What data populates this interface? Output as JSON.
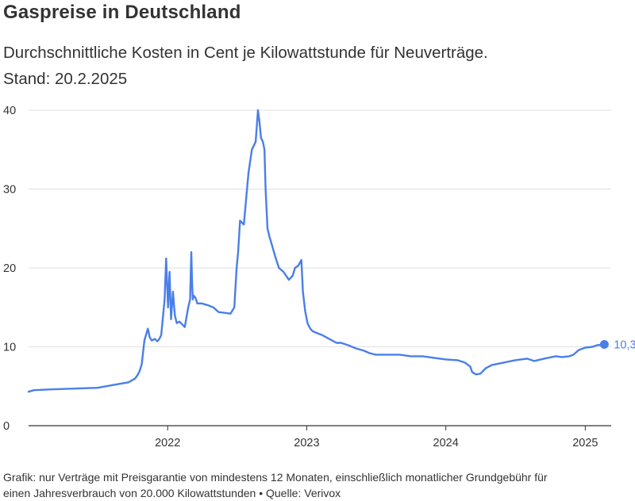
{
  "colors": {
    "line": "#4a7fe8",
    "grid": "#e0e0e0",
    "axis": "#333333",
    "text": "#333333"
  },
  "chart_data": {
    "type": "line",
    "title": "Gaspreise in Deutschland",
    "subtitle_line1": "Durchschnittliche Kosten in Cent je Kilowattstunde für Neuverträge.",
    "subtitle_line2": "Stand: 20.2.2025",
    "footnote_line1": "Grafik: nur Verträge mit Preisgarantie von mindestens 12 Monaten, einschließlich monatlicher Grundgebühr für",
    "footnote_line2": "einen Jahresverbrauch von 20.000 Kilowattstunden • Quelle: Verivox",
    "xlabel": "",
    "ylabel": "",
    "ylim": [
      0,
      40
    ],
    "yticks": [
      "0",
      "10",
      "20",
      "30",
      "40"
    ],
    "xticks": [
      "2022",
      "2023",
      "2024",
      "2025"
    ],
    "xlim": [
      "2021-01-01",
      "2025-03-10"
    ],
    "grid": true,
    "end_label": "10,3",
    "series": [
      {
        "x": [
          "2021-01-01",
          "2021-01-15",
          "2021-03-01",
          "2021-05-01",
          "2021-07-01",
          "2021-08-15",
          "2021-09-20",
          "2021-10-01",
          "2021-10-08",
          "2021-10-15",
          "2021-10-20",
          "2021-10-25",
          "2021-11-01",
          "2021-11-10",
          "2021-11-15",
          "2021-11-20",
          "2021-11-28",
          "2021-12-05",
          "2021-12-10",
          "2021-12-15",
          "2021-12-20",
          "2021-12-24",
          "2021-12-28",
          "2022-01-02",
          "2022-01-06",
          "2022-01-10",
          "2022-01-15",
          "2022-01-20",
          "2022-01-25",
          "2022-02-01",
          "2022-02-15",
          "2022-02-24",
          "2022-03-01",
          "2022-03-04",
          "2022-03-06",
          "2022-03-08",
          "2022-03-10",
          "2022-03-15",
          "2022-03-20",
          "2022-04-01",
          "2022-04-15",
          "2022-05-01",
          "2022-05-15",
          "2022-06-01",
          "2022-06-15",
          "2022-06-25",
          "2022-07-01",
          "2022-07-05",
          "2022-07-10",
          "2022-07-20",
          "2022-08-01",
          "2022-08-10",
          "2022-08-20",
          "2022-08-26",
          "2022-08-30",
          "2022-09-03",
          "2022-09-08",
          "2022-09-12",
          "2022-09-15",
          "2022-09-20",
          "2022-09-25",
          "2022-10-01",
          "2022-10-10",
          "2022-10-20",
          "2022-11-01",
          "2022-11-15",
          "2022-11-25",
          "2022-12-01",
          "2022-12-10",
          "2022-12-18",
          "2022-12-22",
          "2022-12-28",
          "2023-01-03",
          "2023-01-08",
          "2023-01-12",
          "2023-01-16",
          "2023-01-25",
          "2023-02-10",
          "2023-03-01",
          "2023-03-20",
          "2023-04-01",
          "2023-04-20",
          "2023-05-10",
          "2023-06-01",
          "2023-06-15",
          "2023-07-01",
          "2023-08-01",
          "2023-09-01",
          "2023-10-01",
          "2023-11-01",
          "2023-12-01",
          "2024-01-01",
          "2024-02-01",
          "2024-02-20",
          "2024-03-05",
          "2024-03-10",
          "2024-03-20",
          "2024-04-01",
          "2024-04-15",
          "2024-05-01",
          "2024-06-01",
          "2024-07-01",
          "2024-08-01",
          "2024-08-20",
          "2024-09-15",
          "2024-10-15",
          "2024-11-01",
          "2024-11-20",
          "2024-12-01",
          "2024-12-15",
          "2025-01-01",
          "2025-01-20",
          "2025-02-01",
          "2025-02-20"
        ],
        "values": [
          4.3,
          4.5,
          4.6,
          4.7,
          4.8,
          5.2,
          5.5,
          5.8,
          6.0,
          6.5,
          7.0,
          7.8,
          10.8,
          12.3,
          11.2,
          10.8,
          11.0,
          10.7,
          11.0,
          11.5,
          14.0,
          16.0,
          21.2,
          15.0,
          19.5,
          13.5,
          17.0,
          14.0,
          13.0,
          13.2,
          12.5,
          15.0,
          16.0,
          22.0,
          18.5,
          16.0,
          16.5,
          16.2,
          15.5,
          15.5,
          15.3,
          15.0,
          14.4,
          14.3,
          14.2,
          15.0,
          20.0,
          22.0,
          26.0,
          25.5,
          32.0,
          35.0,
          36.0,
          40.0,
          38.5,
          36.5,
          36.0,
          35.0,
          30.0,
          25.0,
          24.0,
          23.0,
          21.5,
          20.0,
          19.5,
          18.5,
          19.0,
          20.0,
          20.3,
          21.0,
          17.0,
          14.5,
          13.0,
          12.5,
          12.2,
          12.0,
          11.8,
          11.5,
          11.0,
          10.5,
          10.5,
          10.2,
          9.8,
          9.5,
          9.2,
          9.0,
          9.0,
          9.0,
          8.8,
          8.8,
          8.6,
          8.4,
          8.3,
          8.0,
          7.5,
          6.8,
          6.5,
          6.6,
          7.3,
          7.7,
          8.0,
          8.3,
          8.5,
          8.2,
          8.5,
          8.8,
          8.7,
          8.8,
          9.0,
          9.6,
          9.9,
          10.0,
          10.2,
          10.3
        ]
      }
    ]
  }
}
